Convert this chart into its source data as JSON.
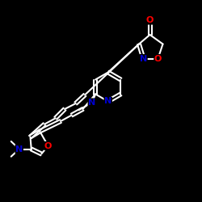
{
  "background_color": "#000000",
  "bond_color": "#ffffff",
  "atom_colors": {
    "O": "#ff0000",
    "N": "#0000cd",
    "C": "#ffffff"
  },
  "bond_width": 1.5,
  "dbo": 0.008,
  "fs": 8
}
